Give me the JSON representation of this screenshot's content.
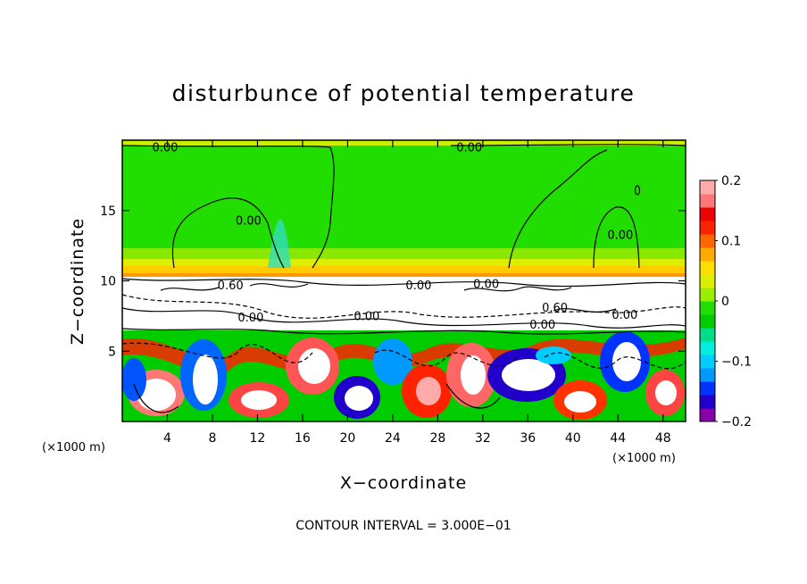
{
  "chart_data": {
    "type": "heatmap",
    "title": "disturbunce of potential temperature",
    "xlabel": "X−coordinate",
    "ylabel": "Z−coordinate",
    "x_unit": "(×1000 m)",
    "z_unit": "(×1000 m)",
    "xlim": [
      0,
      50
    ],
    "ylim": [
      0,
      20
    ],
    "x_ticks": [
      4,
      8,
      12,
      16,
      20,
      24,
      28,
      32,
      36,
      40,
      44,
      48
    ],
    "x_tick_labels": [
      "4",
      "8",
      "12",
      "16",
      "20",
      "24",
      "28",
      "32",
      "36",
      "40",
      "44",
      "48"
    ],
    "y_ticks": [
      5,
      10,
      15
    ],
    "y_tick_labels": [
      "5",
      "10",
      "15"
    ],
    "colorbar": {
      "range": [
        -0.2,
        0.2
      ],
      "tick_values": [
        -0.2,
        -0.1,
        0,
        0.1,
        0.2
      ],
      "tick_labels": [
        "−0.2",
        "−0.1",
        "0",
        "0.1",
        "0.2"
      ],
      "colors": [
        "#8800aa",
        "#2200cc",
        "#0033ff",
        "#0099ff",
        "#00ccff",
        "#00eedd",
        "#00dd88",
        "#00cc00",
        "#22dd00",
        "#99ee00",
        "#ddee00",
        "#ffdd00",
        "#ffaa00",
        "#ff6600",
        "#ff2200",
        "#ee0000",
        "#ff7777",
        "#ffaaaa"
      ]
    },
    "contour_interval_text": "CONTOUR INTERVAL = 3.000E−01",
    "contour_labels": [
      {
        "text": "0.00",
        "x": 3.8,
        "z": 19.2
      },
      {
        "text": "0.00",
        "x": 30.8,
        "z": 19.2
      },
      {
        "text": "0.00",
        "x": 11.2,
        "z": 14.0
      },
      {
        "text": "0.00",
        "x": 44.2,
        "z": 13.0
      },
      {
        "text": "0.60",
        "x": 9.6,
        "z": 9.4
      },
      {
        "text": "0.00",
        "x": 26.3,
        "z": 9.4
      },
      {
        "text": "0.00",
        "x": 32.3,
        "z": 9.5
      },
      {
        "text": "0.00",
        "x": 11.4,
        "z": 7.1
      },
      {
        "text": "0.00",
        "x": 21.7,
        "z": 7.2
      },
      {
        "text": "0.60",
        "x": 38.4,
        "z": 7.8
      },
      {
        "text": "0.00",
        "x": 37.3,
        "z": 6.6
      },
      {
        "text": "0.00",
        "x": 44.6,
        "z": 7.3
      }
    ]
  }
}
